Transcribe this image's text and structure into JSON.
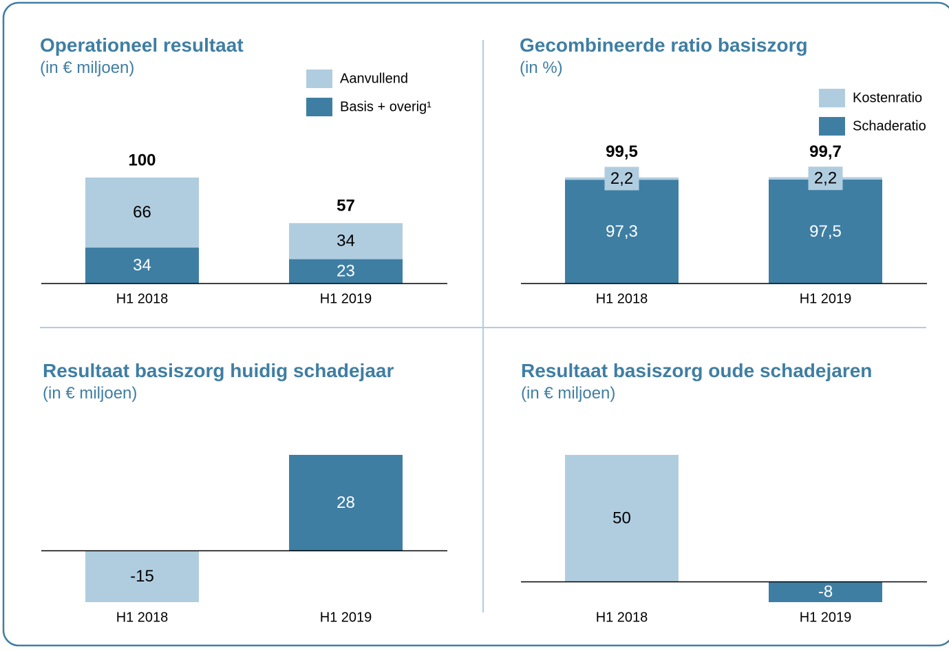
{
  "chart_data": [
    {
      "type": "stacked_bar",
      "title": "Operationeel resultaat",
      "subtitle": "(in € miljoen)",
      "categories": [
        "H1 2018",
        "H1 2019"
      ],
      "series": [
        {
          "name": "Basis + overig¹",
          "color": "#3f7ea3",
          "values": [
            34,
            23
          ]
        },
        {
          "name": "Aanvullend",
          "color": "#b0cde0",
          "values": [
            66,
            34
          ]
        }
      ],
      "totals": [
        100,
        57
      ],
      "ylim": [
        0,
        100
      ]
    },
    {
      "type": "stacked_bar",
      "title": "Gecombineerde ratio basiszorg",
      "subtitle": "(in %)",
      "categories": [
        "H1 2018",
        "H1 2019"
      ],
      "series": [
        {
          "name": "Schaderatio",
          "color": "#3f7ea3",
          "values": [
            97.3,
            97.5
          ],
          "value_labels": [
            "97,3",
            "97,5"
          ]
        },
        {
          "name": "Kostenratio",
          "color": "#b0cde0",
          "values": [
            2.2,
            2.2
          ],
          "value_labels": [
            "2,2",
            "2,2"
          ]
        }
      ],
      "totals": [
        99.5,
        99.7
      ],
      "total_labels": [
        "99,5",
        "99,7"
      ],
      "ylim": [
        0,
        100
      ]
    },
    {
      "type": "bar",
      "title": "Resultaat basiszorg huidig schadejaar",
      "subtitle": "(in € miljoen)",
      "categories": [
        "H1 2018",
        "H1 2019"
      ],
      "values": [
        -15,
        28
      ],
      "colors": [
        "#b0cde0",
        "#3f7ea3"
      ],
      "ylim": [
        -15,
        28
      ]
    },
    {
      "type": "bar",
      "title": "Resultaat basiszorg oude schadejaren",
      "subtitle": "(in € miljoen)",
      "categories": [
        "H1 2018",
        "H1 2019"
      ],
      "values": [
        50,
        -8
      ],
      "colors": [
        "#b0cde0",
        "#3f7ea3"
      ],
      "ylim": [
        -8,
        50
      ]
    }
  ]
}
